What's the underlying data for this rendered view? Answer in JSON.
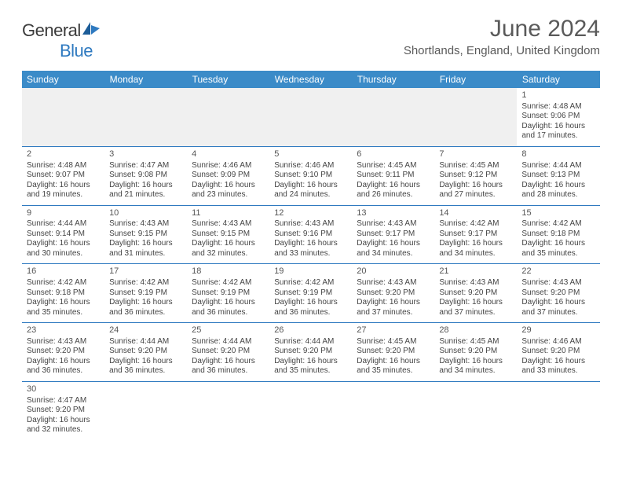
{
  "brand": {
    "name1": "General",
    "name2": "Blue"
  },
  "title": "June 2024",
  "location": "Shortlands, England, United Kingdom",
  "colors": {
    "header_bg": "#3b8bc8",
    "header_text": "#ffffff",
    "rule": "#2f7ac0",
    "blank_bg": "#f0f0f0",
    "text": "#444444",
    "title_text": "#5a5a5a",
    "logo_blue": "#2f7ac0"
  },
  "weekdays": [
    "Sunday",
    "Monday",
    "Tuesday",
    "Wednesday",
    "Thursday",
    "Friday",
    "Saturday"
  ],
  "weeks": [
    [
      null,
      null,
      null,
      null,
      null,
      null,
      {
        "n": "1",
        "sunrise": "4:48 AM",
        "sunset": "9:06 PM",
        "day_h": "16",
        "day_m": "17"
      }
    ],
    [
      {
        "n": "2",
        "sunrise": "4:48 AM",
        "sunset": "9:07 PM",
        "day_h": "16",
        "day_m": "19"
      },
      {
        "n": "3",
        "sunrise": "4:47 AM",
        "sunset": "9:08 PM",
        "day_h": "16",
        "day_m": "21"
      },
      {
        "n": "4",
        "sunrise": "4:46 AM",
        "sunset": "9:09 PM",
        "day_h": "16",
        "day_m": "23"
      },
      {
        "n": "5",
        "sunrise": "4:46 AM",
        "sunset": "9:10 PM",
        "day_h": "16",
        "day_m": "24"
      },
      {
        "n": "6",
        "sunrise": "4:45 AM",
        "sunset": "9:11 PM",
        "day_h": "16",
        "day_m": "26"
      },
      {
        "n": "7",
        "sunrise": "4:45 AM",
        "sunset": "9:12 PM",
        "day_h": "16",
        "day_m": "27"
      },
      {
        "n": "8",
        "sunrise": "4:44 AM",
        "sunset": "9:13 PM",
        "day_h": "16",
        "day_m": "28"
      }
    ],
    [
      {
        "n": "9",
        "sunrise": "4:44 AM",
        "sunset": "9:14 PM",
        "day_h": "16",
        "day_m": "30"
      },
      {
        "n": "10",
        "sunrise": "4:43 AM",
        "sunset": "9:15 PM",
        "day_h": "16",
        "day_m": "31"
      },
      {
        "n": "11",
        "sunrise": "4:43 AM",
        "sunset": "9:15 PM",
        "day_h": "16",
        "day_m": "32"
      },
      {
        "n": "12",
        "sunrise": "4:43 AM",
        "sunset": "9:16 PM",
        "day_h": "16",
        "day_m": "33"
      },
      {
        "n": "13",
        "sunrise": "4:43 AM",
        "sunset": "9:17 PM",
        "day_h": "16",
        "day_m": "34"
      },
      {
        "n": "14",
        "sunrise": "4:42 AM",
        "sunset": "9:17 PM",
        "day_h": "16",
        "day_m": "34"
      },
      {
        "n": "15",
        "sunrise": "4:42 AM",
        "sunset": "9:18 PM",
        "day_h": "16",
        "day_m": "35"
      }
    ],
    [
      {
        "n": "16",
        "sunrise": "4:42 AM",
        "sunset": "9:18 PM",
        "day_h": "16",
        "day_m": "35"
      },
      {
        "n": "17",
        "sunrise": "4:42 AM",
        "sunset": "9:19 PM",
        "day_h": "16",
        "day_m": "36"
      },
      {
        "n": "18",
        "sunrise": "4:42 AM",
        "sunset": "9:19 PM",
        "day_h": "16",
        "day_m": "36"
      },
      {
        "n": "19",
        "sunrise": "4:42 AM",
        "sunset": "9:19 PM",
        "day_h": "16",
        "day_m": "36"
      },
      {
        "n": "20",
        "sunrise": "4:43 AM",
        "sunset": "9:20 PM",
        "day_h": "16",
        "day_m": "37"
      },
      {
        "n": "21",
        "sunrise": "4:43 AM",
        "sunset": "9:20 PM",
        "day_h": "16",
        "day_m": "37"
      },
      {
        "n": "22",
        "sunrise": "4:43 AM",
        "sunset": "9:20 PM",
        "day_h": "16",
        "day_m": "37"
      }
    ],
    [
      {
        "n": "23",
        "sunrise": "4:43 AM",
        "sunset": "9:20 PM",
        "day_h": "16",
        "day_m": "36"
      },
      {
        "n": "24",
        "sunrise": "4:44 AM",
        "sunset": "9:20 PM",
        "day_h": "16",
        "day_m": "36"
      },
      {
        "n": "25",
        "sunrise": "4:44 AM",
        "sunset": "9:20 PM",
        "day_h": "16",
        "day_m": "36"
      },
      {
        "n": "26",
        "sunrise": "4:44 AM",
        "sunset": "9:20 PM",
        "day_h": "16",
        "day_m": "35"
      },
      {
        "n": "27",
        "sunrise": "4:45 AM",
        "sunset": "9:20 PM",
        "day_h": "16",
        "day_m": "35"
      },
      {
        "n": "28",
        "sunrise": "4:45 AM",
        "sunset": "9:20 PM",
        "day_h": "16",
        "day_m": "34"
      },
      {
        "n": "29",
        "sunrise": "4:46 AM",
        "sunset": "9:20 PM",
        "day_h": "16",
        "day_m": "33"
      }
    ],
    [
      {
        "n": "30",
        "sunrise": "4:47 AM",
        "sunset": "9:20 PM",
        "day_h": "16",
        "day_m": "32"
      },
      null,
      null,
      null,
      null,
      null,
      null
    ]
  ],
  "labels": {
    "sunrise": "Sunrise:",
    "sunset": "Sunset:",
    "daylight1": "Daylight:",
    "hours": "hours",
    "and": "and",
    "minutes": "minutes."
  }
}
